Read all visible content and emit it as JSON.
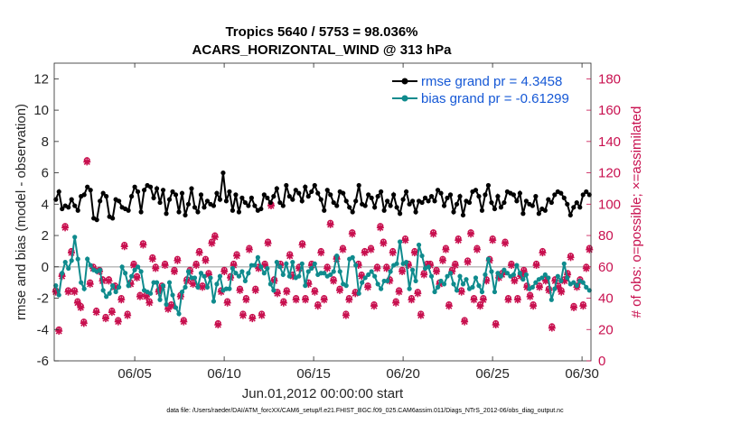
{
  "chart_data": {
    "type": "line",
    "title": "Tropics 5640 / 5753 = 98.036%",
    "subtitle": "ACARS_HORIZONTAL_WIND @ 313 hPa",
    "xlabel": "Jun.01,2012 00:00:00 start",
    "ylabel": "rmse and bias (model - observation)",
    "y2label": "# of obs: o=possible; ×=assimilated",
    "footnote": "data file: /Users/raeder/DAI/ATM_forcXX/CAM6_setup/f.e21.FHIST_BGC.f09_025.CAM6assim.011/Diags_NTrS_2012-06/obs_diag_output.nc",
    "xlim": [
      0,
      30
    ],
    "ylim": [
      -6,
      13
    ],
    "y2lim": [
      0,
      190
    ],
    "x_tick_values": [
      4.5,
      9.5,
      14.5,
      19.5,
      24.5,
      29.5
    ],
    "x_tick_labels": [
      "06/05",
      "06/10",
      "06/15",
      "06/20",
      "06/25",
      "06/30"
    ],
    "y_ticks": [
      -6,
      -4,
      -2,
      0,
      2,
      4,
      6,
      8,
      10,
      12
    ],
    "y_tick_labels": [
      "-6",
      "-4",
      "-2",
      "0",
      "2",
      "4",
      "6",
      "8",
      "10",
      "12"
    ],
    "y2_ticks": [
      0,
      20,
      40,
      60,
      80,
      100,
      120,
      140,
      160,
      180
    ],
    "y2_tick_labels": [
      "0",
      "20",
      "40",
      "60",
      "80",
      "100",
      "120",
      "140",
      "160",
      "180"
    ],
    "legend_position": "top-right",
    "grid": false,
    "zero_line": true,
    "series": [
      {
        "name": "rmse grand pr = 4.3458",
        "color": "#000000",
        "marker": "filled-circle",
        "values": [
          4.3,
          4.8,
          3.7,
          3.9,
          3.8,
          4.3,
          3.9,
          3.6,
          4.5,
          4.6,
          5.1,
          4.9,
          3.1,
          3.0,
          4.2,
          4.7,
          4.5,
          3.2,
          3.1,
          4.3,
          4.2,
          3.8,
          3.7,
          3.6,
          4.5,
          5.1,
          4.8,
          3.5,
          4.9,
          5.2,
          5.1,
          4.4,
          5.0,
          4.1,
          4.9,
          3.4,
          4.3,
          4.8,
          4.6,
          3.5,
          4.7,
          3.3,
          4.0,
          5.0,
          3.8,
          3.5,
          4.6,
          3.8,
          4.2,
          4.0,
          3.9,
          4.7,
          4.3,
          6.0,
          4.2,
          4.8,
          3.6,
          4.6,
          3.5,
          4.4,
          4.1,
          3.9,
          4.4,
          3.9,
          3.6,
          3.7,
          4.6,
          4.4,
          4.1,
          4.5,
          5.0,
          4.1,
          3.9,
          5.2,
          4.5,
          4.3,
          4.9,
          4.7,
          4.2,
          5.1,
          4.5,
          4.8,
          5.2,
          4.7,
          4.3,
          3.6,
          4.9,
          4.6,
          4.1,
          3.9,
          4.8,
          4.7,
          4.2,
          3.8,
          3.5,
          4.2,
          5.2,
          4.0,
          3.9,
          4.6,
          4.4,
          3.8,
          4.5,
          4.8,
          3.6,
          4.2,
          3.9,
          4.6,
          3.8,
          3.4,
          4.3,
          4.8,
          4.0,
          4.2,
          3.5,
          4.2,
          4.1,
          4.4,
          4.2,
          4.5,
          4.2,
          4.9,
          4.7,
          3.9,
          4.4,
          4.6,
          3.5,
          4.0,
          4.5,
          3.3,
          4.2,
          4.1,
          4.8,
          4.9,
          4.5,
          3.6,
          4.6,
          5.2,
          4.1,
          3.7,
          4.5,
          3.8,
          4.1,
          4.8,
          4.7,
          4.6,
          4.2,
          4.7,
          3.4,
          4.2,
          4.0,
          3.9,
          4.5,
          3.4,
          3.7,
          3.6,
          4.3,
          4.1,
          4.6,
          4.8,
          4.7,
          4.4,
          4.0,
          3.3,
          3.8,
          4.1,
          3.8,
          4.6,
          4.8,
          4.6
        ]
      },
      {
        "name": "bias grand pr = -0.61299",
        "color": "#0f8b8d",
        "marker": "filled-circle",
        "values": [
          -1.2,
          -1.8,
          -0.4,
          0.3,
          -0.1,
          0.4,
          1.9,
          0.5,
          -1.0,
          -1.4,
          0.5,
          0.1,
          -0.2,
          -0.3,
          -0.2,
          -1.5,
          -1.9,
          -1.7,
          -1.2,
          -1.6,
          -1.3,
          0.0,
          -0.4,
          -1.2,
          -0.6,
          -0.2,
          0.0,
          -0.3,
          -1.5,
          -1.6,
          -1.7,
          -1.0,
          -1.0,
          -2.1,
          -1.2,
          -2.4,
          -1.0,
          -1.8,
          -2.6,
          -3.0,
          -1.6,
          -1.3,
          -0.3,
          -0.7,
          -0.7,
          -1.3,
          -0.4,
          -0.6,
          -1.3,
          -0.7,
          -2.2,
          -1.1,
          -0.6,
          -1.5,
          -1.4,
          -1.4,
          -0.1,
          -0.4,
          -0.6,
          -0.3,
          -0.9,
          -0.4,
          0.1,
          0.1,
          0.6,
          0.0,
          -0.4,
          -0.1,
          -1.1,
          -1.5,
          0.3,
          0.0,
          -0.5,
          0.2,
          -0.6,
          0.3,
          -0.7,
          -0.6,
          0.2,
          -1.2,
          -0.3,
          -0.1,
          0.2,
          -0.5,
          -0.4,
          -0.4,
          -0.6,
          -0.5,
          -0.3,
          0.7,
          -0.3,
          -1.1,
          -1.2,
          0.5,
          0.6,
          0.1,
          -1.7,
          -1.0,
          -0.7,
          -0.5,
          -0.3,
          -0.6,
          -1.1,
          -1.4,
          -0.9,
          -0.9,
          -0.3,
          0.1,
          0.2,
          1.6,
          0.2,
          0.3,
          -1.4,
          -0.2,
          -0.9,
          1.4,
          0.7,
          -0.1,
          0.0,
          -0.6,
          -1.6,
          -1.3,
          -0.9,
          -1.1,
          -0.6,
          -0.4,
          -1.1,
          -1.5,
          -0.6,
          -1.1,
          -0.8,
          -1.4,
          -1.3,
          -0.7,
          -1.2,
          -1.6,
          -0.5,
          0.5,
          -0.3,
          -1.6,
          -0.4,
          -0.6,
          -0.2,
          -0.4,
          -0.6,
          -0.5,
          0.1,
          -0.4,
          -0.8,
          -0.5,
          -1.4,
          -1.3,
          -1.0,
          -0.8,
          -0.7,
          -0.5,
          -0.7,
          -2.1,
          -1.4,
          -0.6,
          -0.9,
          0.2,
          -0.7,
          -1.1,
          -1.0,
          -1.2,
          -0.9,
          -1.0,
          -1.3,
          -1.5
        ]
      },
      {
        "name": "# obs possible",
        "axis": "right",
        "color": "#c8104f",
        "marker": "open-circle",
        "values": [
          45,
          20,
          55,
          86,
          45,
          70,
          45,
          38,
          35,
          25,
          128,
          50,
          60,
          32,
          58,
          52,
          28,
          52,
          32,
          48,
          26,
          40,
          74,
          30,
          50,
          62,
          54,
          42,
          75,
          42,
          38,
          66,
          60,
          45,
          48,
          62,
          34,
          36,
          58,
          65,
          42,
          26,
          52,
          58,
          50,
          62,
          70,
          48,
          65,
          56,
          76,
          80,
          24,
          45,
          58,
          38,
          54,
          62,
          68,
          46,
          30,
          40,
          72,
          28,
          46,
          60,
          30,
          62,
          76,
          100,
          52,
          44,
          62,
          38,
          45,
          68,
          55,
          40,
          60,
          75,
          40,
          50,
          62,
          45,
          36,
          70,
          40,
          60,
          88,
          52,
          66,
          46,
          72,
          30,
          40,
          82,
          44,
          62,
          55,
          70,
          48,
          72,
          36,
          60,
          86,
          76,
          60,
          52,
          70,
          38,
          45,
          58,
          78,
          62,
          40,
          70,
          44,
          30,
          56,
          62,
          62,
          82,
          58,
          50,
          65,
          72,
          36,
          58,
          62,
          78,
          45,
          26,
          64,
          82,
          40,
          72,
          36,
          40,
          52,
          65,
          78,
          24,
          54,
          56,
          76,
          40,
          62,
          52,
          40,
          55,
          58,
          48,
          42,
          36,
          62,
          48,
          70,
          52,
          46,
          22,
          52,
          48,
          45,
          52,
          56,
          67,
          35,
          48,
          52,
          36,
          60,
          72
        ]
      },
      {
        "name": "# obs assimilated",
        "axis": "right",
        "color": "#c8104f",
        "marker": "x",
        "values": [
          44,
          19,
          54,
          85,
          44,
          69,
          44,
          37,
          34,
          24,
          127,
          49,
          59,
          31,
          57,
          51,
          27,
          51,
          31,
          47,
          25,
          39,
          73,
          29,
          49,
          61,
          53,
          41,
          74,
          41,
          37,
          65,
          59,
          44,
          47,
          61,
          33,
          35,
          57,
          64,
          41,
          25,
          51,
          57,
          49,
          61,
          69,
          47,
          64,
          55,
          75,
          79,
          23,
          44,
          57,
          37,
          53,
          61,
          67,
          45,
          29,
          39,
          71,
          27,
          45,
          59,
          29,
          61,
          75,
          99,
          51,
          43,
          61,
          37,
          44,
          67,
          54,
          39,
          59,
          74,
          39,
          49,
          61,
          44,
          35,
          69,
          39,
          59,
          87,
          51,
          65,
          45,
          71,
          29,
          39,
          81,
          43,
          61,
          54,
          69,
          47,
          71,
          35,
          59,
          85,
          75,
          59,
          51,
          69,
          37,
          44,
          57,
          77,
          61,
          39,
          69,
          43,
          29,
          55,
          61,
          61,
          81,
          57,
          49,
          64,
          71,
          35,
          57,
          61,
          77,
          44,
          25,
          63,
          81,
          39,
          71,
          35,
          39,
          51,
          64,
          77,
          23,
          53,
          55,
          75,
          39,
          61,
          51,
          39,
          54,
          57,
          47,
          41,
          35,
          61,
          47,
          69,
          51,
          45,
          21,
          51,
          47,
          44,
          51,
          55,
          66,
          34,
          47,
          51,
          35,
          59,
          71
        ]
      }
    ]
  }
}
